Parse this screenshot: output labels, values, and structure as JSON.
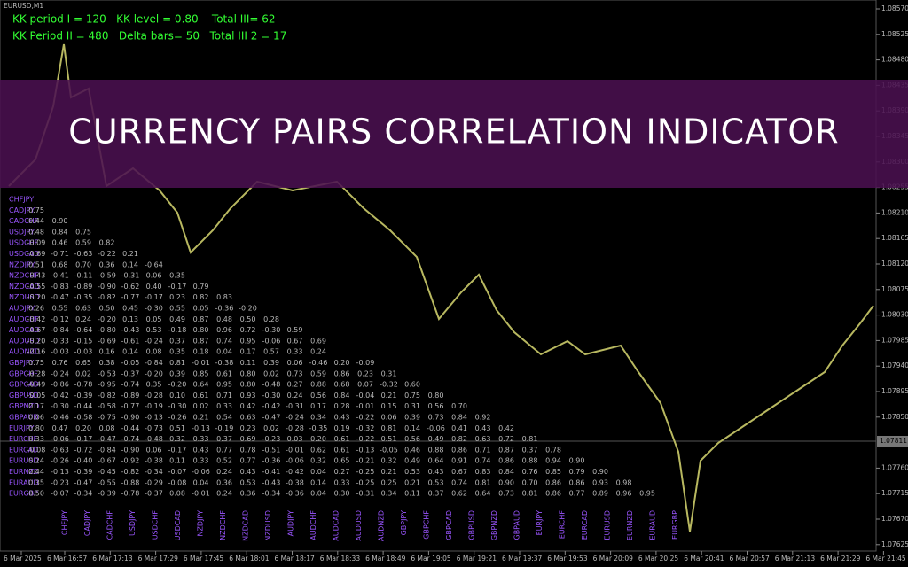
{
  "window": {
    "symbol": "EURUSD,M1"
  },
  "header": {
    "lines": [
      "KK period I = 120   KK level = 0.80    Total III= 62",
      "KK Period II = 480   Delta bars= 50   Total III 2 = 17"
    ]
  },
  "banner": {
    "title": "CURRENCY PAIRS CORRELATION INDICATOR"
  },
  "price_axis": {
    "labels": [
      "1.08570",
      "1.08525",
      "1.08480",
      "1.08435",
      "1.08390",
      "1.08345",
      "1.08300",
      "1.08255",
      "1.08210",
      "1.08165",
      "1.08120",
      "1.08075",
      "1.08030",
      "1.07985",
      "1.07940",
      "1.07895",
      "1.07850",
      "1.07760",
      "1.07715",
      "1.07670",
      "1.07625"
    ],
    "current": "1.07811"
  },
  "time_axis": {
    "labels": [
      "6 Mar 2025",
      "6 Mar 16:57",
      "6 Mar 17:13",
      "6 Mar 17:29",
      "6 Mar 17:45",
      "6 Mar 18:01",
      "6 Mar 18:17",
      "6 Mar 18:33",
      "6 Mar 18:49",
      "6 Mar 19:05",
      "6 Mar 19:21",
      "6 Mar 19:37",
      "6 Mar 19:53",
      "6 Mar 20:09",
      "6 Mar 20:25",
      "6 Mar 20:41",
      "6 Mar 20:57",
      "6 Mar 21:13",
      "6 Mar 21:29",
      "6 Mar 21:45"
    ]
  },
  "matrix": {
    "pairs": [
      "CHFJPY",
      "CADJPY",
      "CADCHF",
      "USDJPY",
      "USDCHF",
      "USDCAD",
      "NZDJPY",
      "NZDCHF",
      "NZDCAD",
      "NZDUSD",
      "AUDJPY",
      "AUDCHF",
      "AUDCAD",
      "AUDUSD",
      "AUDNZD",
      "GBPJPY",
      "GBPCHF",
      "GBPCAD",
      "GBPUSD",
      "GBPNZD",
      "GBPAUD",
      "EURJPY",
      "EURCHF",
      "EURCAD",
      "EURUSD",
      "EURNZD",
      "EURAUD",
      "EURGBP"
    ],
    "rows": [
      [],
      [
        "0.75"
      ],
      [
        "0.44",
        "0.90"
      ],
      [
        "0.48",
        "0.84",
        "0.75"
      ],
      [
        "-0.09",
        "0.46",
        "0.59",
        "0.82"
      ],
      [
        "-0.69",
        "-0.71",
        "-0.63",
        "-0.22",
        "0.21"
      ],
      [
        "0.51",
        "0.68",
        "0.70",
        "0.36",
        "0.14",
        "-0.64"
      ],
      [
        "-0.43",
        "-0.41",
        "-0.11",
        "-0.59",
        "-0.31",
        "0.06",
        "0.35"
      ],
      [
        "-0.55",
        "-0.83",
        "-0.89",
        "-0.90",
        "-0.62",
        "0.40",
        "-0.17",
        "0.79"
      ],
      [
        "-0.20",
        "-0.47",
        "-0.35",
        "-0.82",
        "-0.77",
        "-0.17",
        "0.23",
        "0.82",
        "0.83"
      ],
      [
        "0.26",
        "0.55",
        "0.63",
        "0.50",
        "0.45",
        "-0.30",
        "0.55",
        "0.05",
        "-0.36",
        "-0.20"
      ],
      [
        "-0.42",
        "-0.12",
        "0.24",
        "-0.20",
        "0.13",
        "0.05",
        "0.49",
        "0.87",
        "0.48",
        "0.50",
        "0.28"
      ],
      [
        "-0.67",
        "-0.84",
        "-0.64",
        "-0.80",
        "-0.43",
        "0.53",
        "-0.18",
        "0.80",
        "0.96",
        "0.72",
        "-0.30",
        "0.59"
      ],
      [
        "-0.20",
        "-0.33",
        "-0.15",
        "-0.69",
        "-0.61",
        "-0.24",
        "0.37",
        "0.87",
        "0.74",
        "0.95",
        "-0.06",
        "0.67",
        "0.69"
      ],
      [
        "-0.16",
        "-0.03",
        "-0.03",
        "0.16",
        "0.14",
        "0.08",
        "0.35",
        "0.18",
        "0.04",
        "0.17",
        "0.57",
        "0.33",
        "0.24"
      ],
      [
        "0.75",
        "0.76",
        "0.65",
        "0.38",
        "-0.05",
        "-0.84",
        "0.81",
        "-0.01",
        "-0.38",
        "0.11",
        "0.39",
        "0.06",
        "-0.46",
        "0.20",
        "-0.09"
      ],
      [
        "-0.28",
        "-0.24",
        "0.02",
        "-0.53",
        "-0.37",
        "-0.20",
        "0.39",
        "0.85",
        "0.61",
        "0.80",
        "0.02",
        "0.73",
        "0.59",
        "0.86",
        "0.23",
        "0.31"
      ],
      [
        "-0.49",
        "-0.86",
        "-0.78",
        "-0.95",
        "-0.74",
        "0.35",
        "-0.20",
        "0.64",
        "0.95",
        "0.80",
        "-0.48",
        "0.27",
        "0.88",
        "0.68",
        "0.07",
        "-0.32",
        "0.60"
      ],
      [
        "-0.05",
        "-0.42",
        "-0.39",
        "-0.82",
        "-0.89",
        "-0.28",
        "0.10",
        "0.61",
        "0.71",
        "0.93",
        "-0.30",
        "0.24",
        "0.56",
        "0.84",
        "-0.04",
        "0.21",
        "0.75",
        "0.80"
      ],
      [
        "0.17",
        "-0.30",
        "-0.44",
        "-0.58",
        "-0.77",
        "-0.19",
        "-0.30",
        "0.02",
        "0.33",
        "0.42",
        "-0.42",
        "-0.31",
        "0.17",
        "0.28",
        "-0.01",
        "0.15",
        "0.31",
        "0.56",
        "0.70"
      ],
      [
        "0.06",
        "-0.46",
        "-0.58",
        "-0.75",
        "-0.90",
        "-0.13",
        "-0.26",
        "0.21",
        "0.54",
        "0.63",
        "-0.47",
        "-0.24",
        "0.34",
        "0.43",
        "-0.22",
        "0.06",
        "0.39",
        "0.73",
        "0.84",
        "0.92"
      ],
      [
        "0.80",
        "0.47",
        "0.20",
        "0.08",
        "-0.44",
        "-0.73",
        "0.51",
        "-0.13",
        "-0.19",
        "0.23",
        "0.02",
        "-0.28",
        "-0.35",
        "0.19",
        "-0.32",
        "0.81",
        "0.14",
        "-0.06",
        "0.41",
        "0.43",
        "0.42"
      ],
      [
        "0.33",
        "-0.06",
        "-0.17",
        "-0.47",
        "-0.74",
        "-0.48",
        "0.32",
        "0.33",
        "0.37",
        "0.69",
        "-0.23",
        "0.03",
        "0.20",
        "0.61",
        "-0.22",
        "0.51",
        "0.56",
        "0.49",
        "0.82",
        "0.63",
        "0.72",
        "0.81"
      ],
      [
        "-0.08",
        "-0.63",
        "-0.72",
        "-0.84",
        "-0.90",
        "0.06",
        "-0.17",
        "0.43",
        "0.77",
        "0.78",
        "-0.51",
        "-0.01",
        "0.62",
        "0.61",
        "-0.13",
        "-0.05",
        "0.46",
        "0.88",
        "0.86",
        "0.71",
        "0.87",
        "0.37",
        "0.78"
      ],
      [
        "0.24",
        "-0.26",
        "-0.40",
        "-0.67",
        "-0.92",
        "-0.38",
        "0.11",
        "0.33",
        "0.52",
        "0.77",
        "-0.36",
        "-0.06",
        "0.32",
        "0.65",
        "-0.21",
        "0.32",
        "0.49",
        "0.64",
        "0.91",
        "0.74",
        "0.86",
        "0.88",
        "0.94",
        "0.90"
      ],
      [
        "0.44",
        "-0.13",
        "-0.39",
        "-0.45",
        "-0.82",
        "-0.34",
        "-0.07",
        "-0.06",
        "0.24",
        "0.43",
        "-0.41",
        "-0.42",
        "0.04",
        "0.27",
        "-0.25",
        "0.21",
        "0.53",
        "0.43",
        "0.67",
        "0.83",
        "0.84",
        "0.76",
        "0.85",
        "0.79",
        "0.90"
      ],
      [
        "0.35",
        "-0.23",
        "-0.47",
        "-0.55",
        "-0.88",
        "-0.29",
        "-0.08",
        "0.04",
        "0.36",
        "0.53",
        "-0.43",
        "-0.38",
        "0.14",
        "0.33",
        "-0.25",
        "0.25",
        "0.21",
        "0.53",
        "0.74",
        "0.81",
        "0.90",
        "0.70",
        "0.86",
        "0.86",
        "0.93",
        "0.98"
      ],
      [
        "0.50",
        "-0.07",
        "-0.34",
        "-0.39",
        "-0.78",
        "-0.37",
        "0.08",
        "-0.01",
        "0.24",
        "0.36",
        "-0.34",
        "-0.36",
        "0.04",
        "0.30",
        "-0.31",
        "0.34",
        "0.11",
        "0.37",
        "0.62",
        "0.64",
        "0.73",
        "0.81",
        "0.86",
        "0.77",
        "0.89",
        "0.96",
        "0.95"
      ]
    ]
  }
}
